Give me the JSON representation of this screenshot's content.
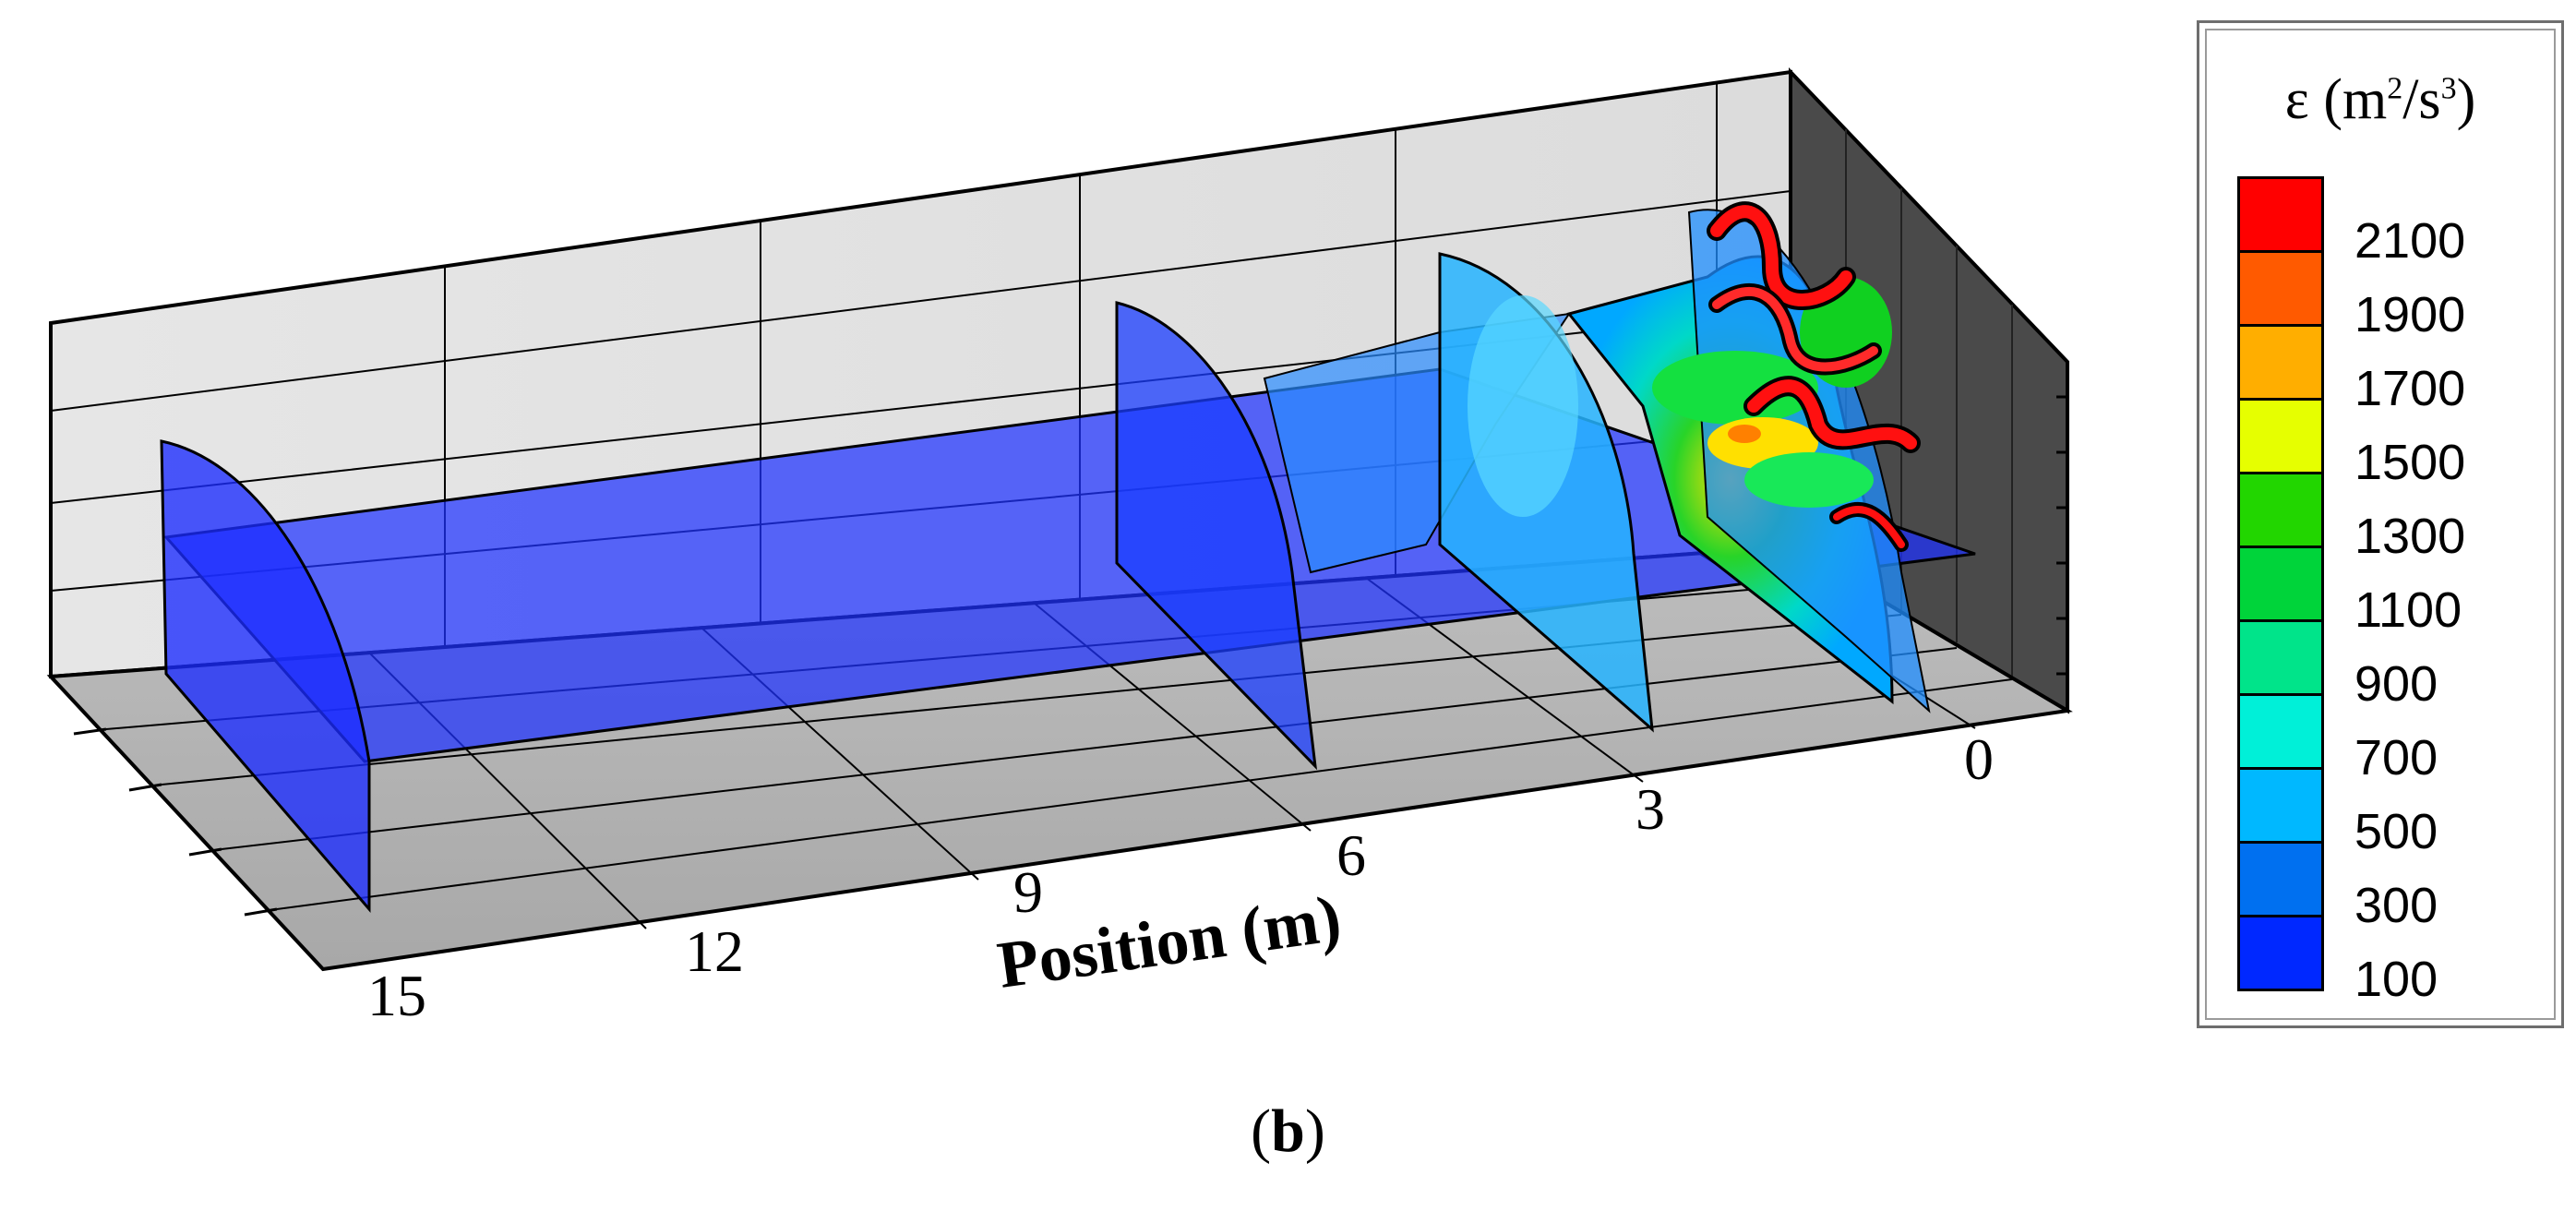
{
  "axis": {
    "label": "Position (m)",
    "ticks": [
      "15",
      "12",
      "9",
      "6",
      "3",
      "0"
    ]
  },
  "legend": {
    "variable": "ε (m",
    "sup1": "2",
    "mid": "/s",
    "sup2": "3",
    "close": ")",
    "levels": [
      "2100",
      "1900",
      "1700",
      "1500",
      "1300",
      "1100",
      "900",
      "700",
      "500",
      "300",
      "100"
    ],
    "colors": [
      "#ff0000",
      "#ff5a00",
      "#ffae00",
      "#e6ff00",
      "#22d600",
      "#00d43a",
      "#00e48a",
      "#00f0d8",
      "#00b8ff",
      "#0070f0",
      "#0028ff"
    ]
  },
  "caption": {
    "open": "(",
    "letter": "b",
    "close": ")"
  }
}
